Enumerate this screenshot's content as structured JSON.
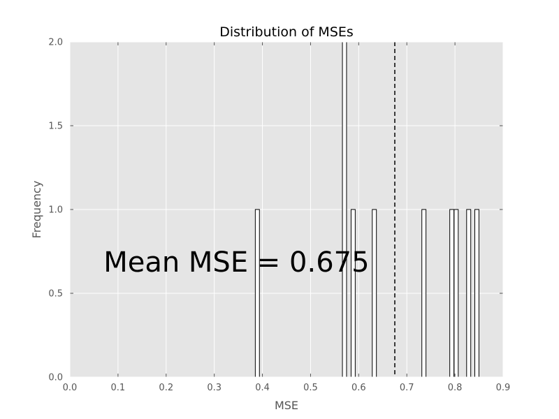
{
  "chart_data": {
    "type": "histogram",
    "title": "Distribution of MSEs",
    "xlabel": "MSE",
    "ylabel": "Frequency",
    "xlim": [
      0.0,
      0.9
    ],
    "ylim": [
      0.0,
      2.0
    ],
    "xticks": [
      0.0,
      0.1,
      0.2,
      0.3,
      0.4,
      0.5,
      0.6,
      0.7,
      0.8,
      0.9
    ],
    "xtick_labels": [
      "0.0",
      "0.1",
      "0.2",
      "0.3",
      "0.4",
      "0.5",
      "0.6",
      "0.7",
      "0.8",
      "0.9"
    ],
    "yticks": [
      0.0,
      0.5,
      1.0,
      1.5,
      2.0
    ],
    "ytick_labels": [
      "0.0",
      "0.5",
      "1.0",
      "1.5",
      "2.0"
    ],
    "grid": true,
    "bin_width": 0.00859,
    "bars": [
      {
        "x": 0.3895,
        "count": 1
      },
      {
        "x": 0.5705,
        "count": 2
      },
      {
        "x": 0.5885,
        "count": 1
      },
      {
        "x": 0.6325,
        "count": 1
      },
      {
        "x": 0.7355,
        "count": 1
      },
      {
        "x": 0.7935,
        "count": 1
      },
      {
        "x": 0.8025,
        "count": 1
      },
      {
        "x": 0.8285,
        "count": 1
      },
      {
        "x": 0.8455,
        "count": 1
      }
    ],
    "mean": 0.675,
    "annotation": "Mean MSE = 0.675",
    "colors": {
      "plot_background": "#e5e5e5",
      "grid": "#ffffff",
      "bar_fill": "#ffffff",
      "bar_edge": "#000000",
      "mean_line": "#000000",
      "text": "#555555"
    }
  }
}
